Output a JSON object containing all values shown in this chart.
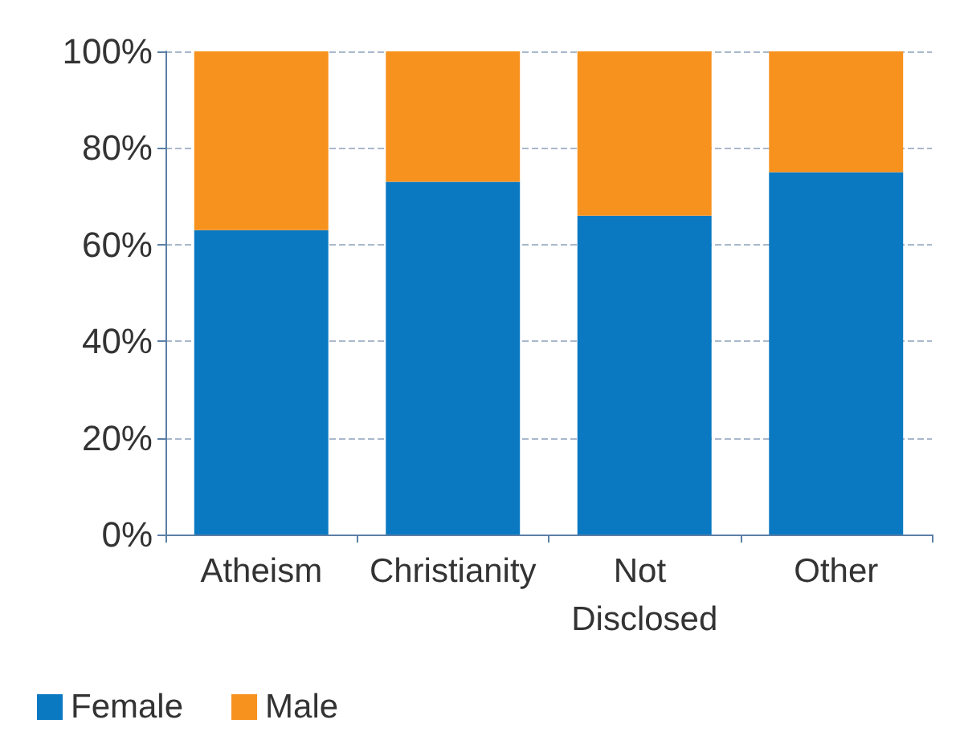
{
  "chart_data": {
    "type": "bar",
    "stacked": true,
    "categories": [
      "Atheism",
      "Christianity",
      "Not Disclosed",
      "Other"
    ],
    "series": [
      {
        "name": "Female",
        "color": "#0a79c1",
        "values": [
          63,
          73,
          66,
          75
        ]
      },
      {
        "name": "Male",
        "color": "#f7921e",
        "values": [
          37,
          27,
          34,
          25
        ]
      }
    ],
    "ylim": [
      0,
      100
    ],
    "yticks": [
      {
        "value": 0,
        "label": "0%"
      },
      {
        "value": 20,
        "label": "20%"
      },
      {
        "value": 40,
        "label": "40%"
      },
      {
        "value": 60,
        "label": "60%"
      },
      {
        "value": 80,
        "label": "80%"
      },
      {
        "value": 100,
        "label": "100%"
      }
    ],
    "grid": "y",
    "legend": "bottom left"
  }
}
